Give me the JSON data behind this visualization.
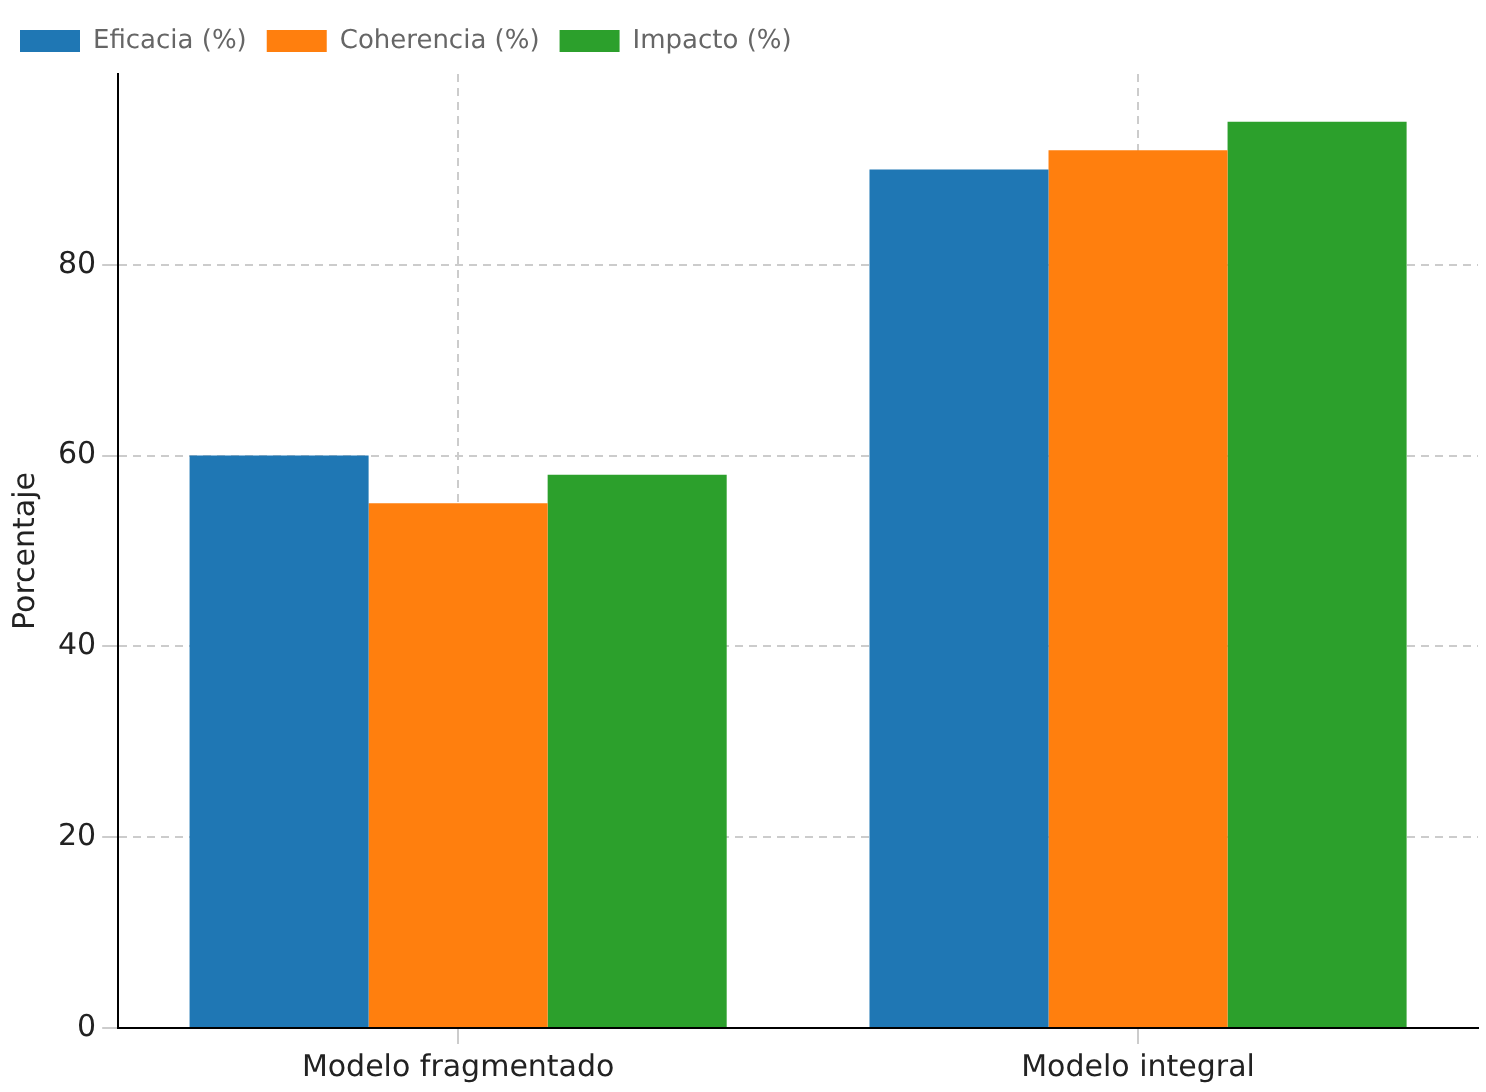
{
  "chart_data": {
    "type": "bar",
    "ylabel": "Porcentaje",
    "categories": [
      "Modelo fragmentado",
      "Modelo integral"
    ],
    "series": [
      {
        "name": "Eficacia (%)",
        "color": "#1f77b4",
        "values": [
          60,
          90
        ]
      },
      {
        "name": "Coherencia (%)",
        "color": "#ff7f0e",
        "values": [
          55,
          92
        ]
      },
      {
        "name": "Impacto (%)",
        "color": "#2ca02c",
        "values": [
          58,
          95
        ]
      }
    ],
    "ylim": [
      0,
      100
    ],
    "yticks": [
      0,
      20,
      40,
      60,
      80
    ],
    "grid": true,
    "legend": "top left"
  }
}
